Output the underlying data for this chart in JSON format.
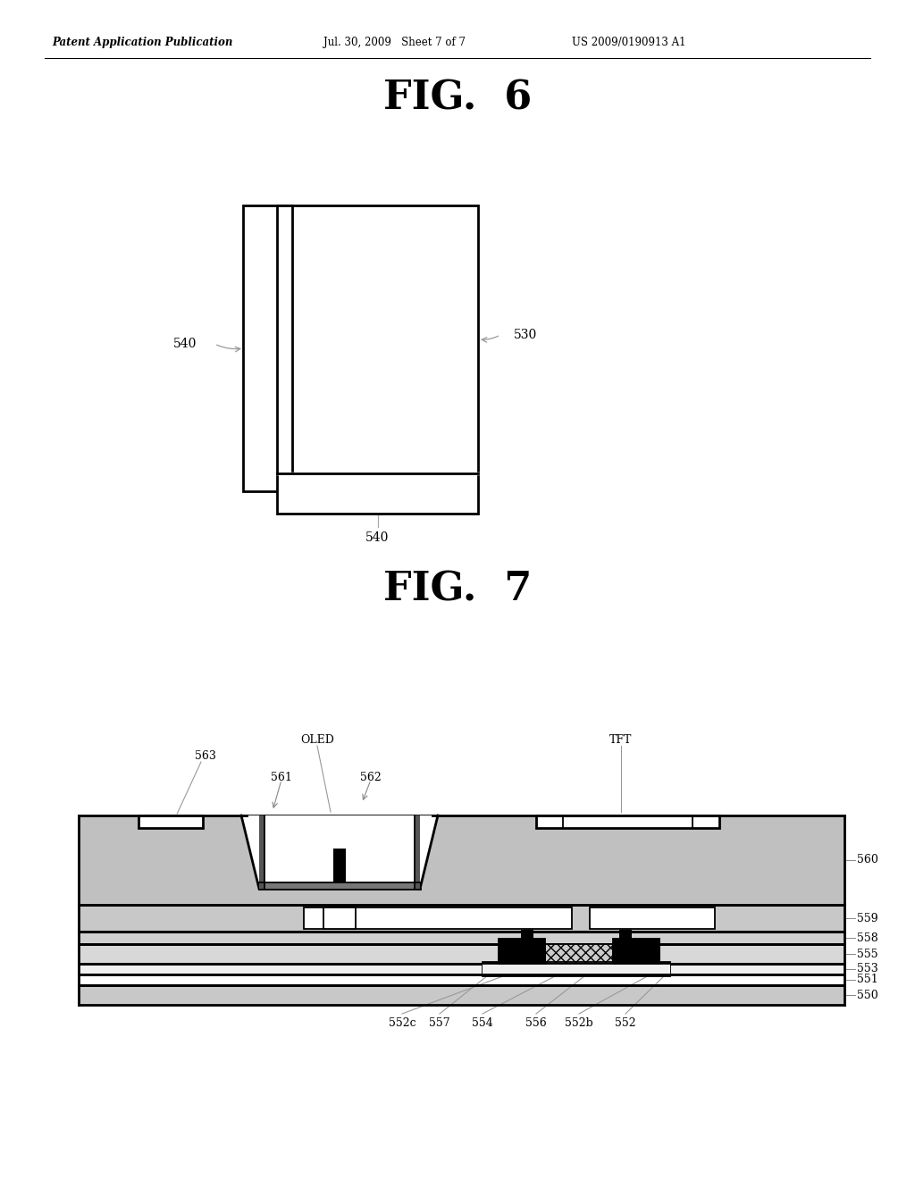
{
  "header_left": "Patent Application Publication",
  "header_mid": "Jul. 30, 2009   Sheet 7 of 7",
  "header_right": "US 2009/0190913 A1",
  "fig6_title": "FIG.  6",
  "fig7_title": "FIG.  7",
  "bg_color": "#ffffff",
  "line_color": "#000000"
}
